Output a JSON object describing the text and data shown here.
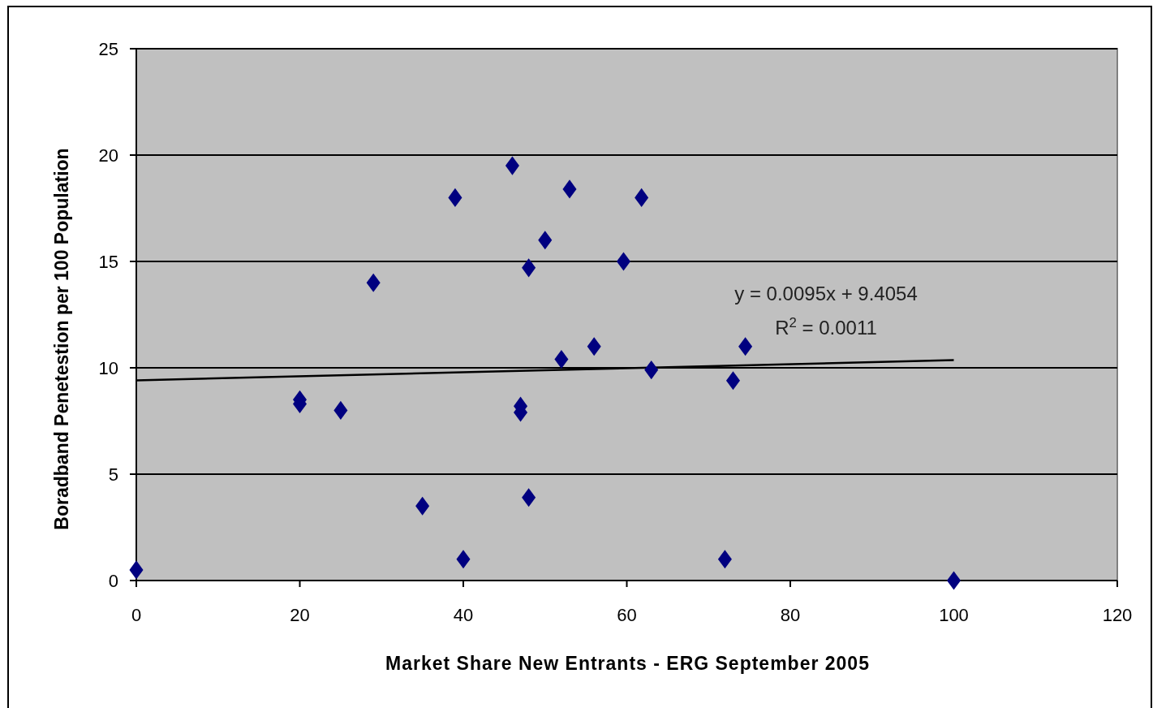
{
  "chart_data": {
    "type": "scatter",
    "xlabel": "Market Share New Entrants - ERG September 2005",
    "ylabel": "Boradband Penetestion per 100 Population",
    "xlim": [
      0,
      120
    ],
    "xticks": [
      0,
      20,
      40,
      60,
      80,
      100,
      120
    ],
    "ylim": [
      0,
      25
    ],
    "yticks": [
      0,
      5,
      10,
      15,
      20,
      25
    ],
    "grid": "y",
    "series": [
      {
        "color": "#000080",
        "marker": "diamond",
        "x": [
          0,
          20,
          20,
          25,
          29,
          35,
          39,
          40,
          46,
          47,
          47,
          48,
          48,
          50,
          52,
          53,
          56,
          59.6,
          61.8,
          63,
          72,
          73,
          74.5,
          100
        ],
        "values": [
          0.5,
          8.5,
          8.3,
          8,
          14,
          3.5,
          18,
          1,
          19.5,
          8.2,
          7.9,
          14.7,
          3.9,
          16,
          10.4,
          18.4,
          11,
          15,
          18,
          9.9,
          1,
          9.4,
          11,
          0
        ]
      },
      {
        "type": "line",
        "color": "#000000",
        "x": [
          0,
          100
        ],
        "values": [
          9.41,
          10.36
        ]
      }
    ],
    "annotations": [
      "y = 0.0095x + 9.4054",
      "R$^{2}$ = 0.0011"
    ]
  }
}
